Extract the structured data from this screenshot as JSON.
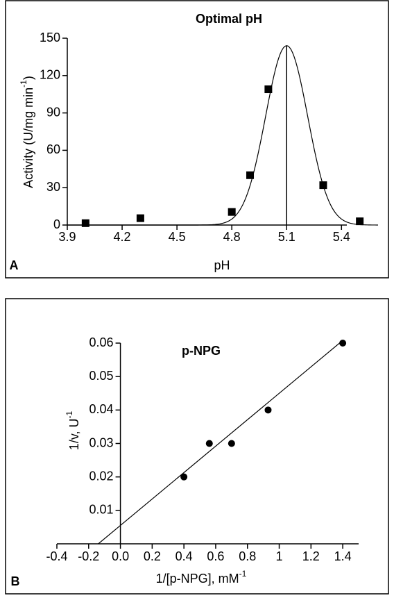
{
  "chart_data": [
    {
      "type": "scatter",
      "panel": "A",
      "title": "Optimal pH",
      "xlabel": "pH",
      "ylabel": [
        "Activity (U/mg min",
        "-1",
        ")"
      ],
      "marker": "square",
      "color": "#000000",
      "x": [
        4.0,
        4.3,
        4.8,
        4.9,
        5.0,
        5.3,
        5.5
      ],
      "values": [
        1.5,
        5.5,
        10.5,
        40,
        109,
        32,
        3
      ],
      "fit": {
        "type": "gaussian",
        "amplitude": 144,
        "center": 5.1,
        "sigma": 0.115
      },
      "xlim": [
        3.9,
        5.6
      ],
      "xticks": [
        3.9,
        4.2,
        4.5,
        4.8,
        5.1,
        5.4
      ],
      "ylim": [
        0,
        150
      ],
      "yticks": [
        0,
        30,
        60,
        90,
        120,
        150
      ]
    },
    {
      "type": "scatter",
      "panel": "B",
      "title": "p-NPG",
      "xlabel": [
        "1/[p-NPG], mM",
        "-1",
        ""
      ],
      "ylabel": [
        "1/v, U",
        "-1",
        ""
      ],
      "marker": "circle",
      "color": "#000000",
      "x": [
        0.4,
        0.56,
        0.7,
        0.93,
        1.4
      ],
      "values": [
        0.02,
        0.03,
        0.03,
        0.04,
        0.06
      ],
      "fit": {
        "type": "linear",
        "slope": 0.0395,
        "intercept": 0.0055,
        "x_range": [
          -0.14,
          1.4
        ]
      },
      "xlim": [
        -0.4,
        1.5
      ],
      "xticks": [
        -0.4,
        -0.2,
        {
          "value": 0,
          "label": "0.0"
        },
        0.2,
        0.4,
        0.6,
        0.8,
        1,
        {
          "value": 1.2,
          "label": "1.2"
        },
        1.4
      ],
      "ylim": [
        0,
        0.06
      ],
      "yticks": [
        0.01,
        0.02,
        0.03,
        0.04,
        0.05,
        0.06
      ]
    }
  ]
}
